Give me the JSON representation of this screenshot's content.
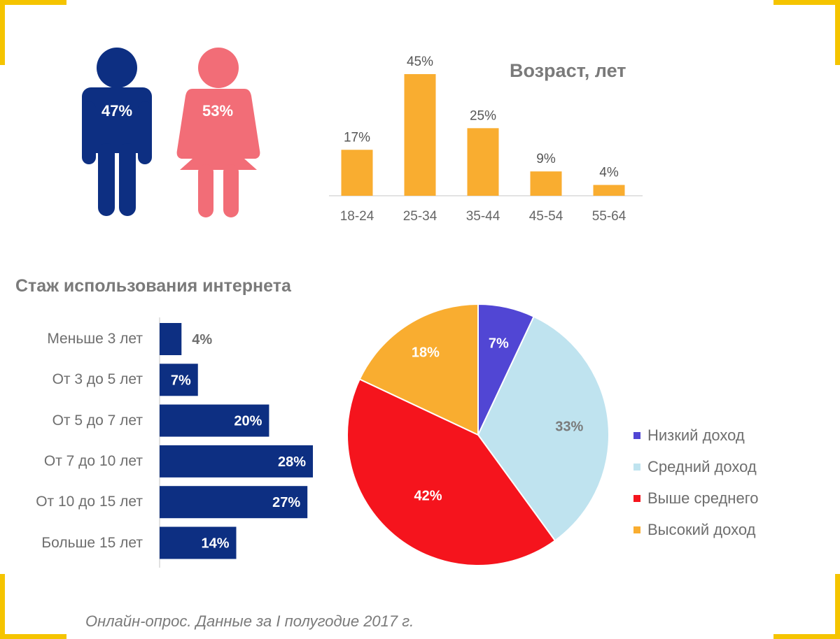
{
  "colors": {
    "corner": "#f5c400",
    "male": "#0d2f82",
    "female": "#f26d77",
    "age_bar": "#f9ad30",
    "exp_bar": "#0d2f82",
    "axis": "#d9d9d9"
  },
  "gender": {
    "male_icon": "man-icon",
    "female_icon": "woman-icon",
    "male_label": "47%",
    "female_label": "53%"
  },
  "age": {
    "title": "Возраст, лет"
  },
  "experience": {
    "title": "Стаж использования интернета"
  },
  "legend": [
    {
      "label": "Низкий доход",
      "color": "#5146d4"
    },
    {
      "label": "Средний доход",
      "color": "#bfe3ef"
    },
    {
      "label": "Выше среднего",
      "color": "#f5141d"
    },
    {
      "label": "Высокий доход",
      "color": "#f9ad30"
    }
  ],
  "footnote": "Онлайн-опрос. Данные за I полугодие 2017 г.",
  "chart_data": [
    {
      "type": "pie",
      "title": "",
      "categories": [
        "Мужчины",
        "Женщины"
      ],
      "values": [
        47,
        53
      ],
      "labels": [
        "47%",
        "53%"
      ]
    },
    {
      "type": "bar",
      "title": "Возраст, лет",
      "categories": [
        "18-24",
        "25-34",
        "35-44",
        "45-54",
        "55-64"
      ],
      "values": [
        17,
        45,
        25,
        9,
        4
      ],
      "labels": [
        "17%",
        "45%",
        "25%",
        "9%",
        "4%"
      ],
      "ylim": [
        0,
        45
      ]
    },
    {
      "type": "bar",
      "orientation": "horizontal",
      "title": "Стаж использования интернета",
      "categories": [
        "Меньше 3 лет",
        "От 3 до 5 лет",
        "От 5 до 7 лет",
        "От 7 до 10 лет",
        "От 10 до 15 лет",
        "Больше 15 лет"
      ],
      "values": [
        4,
        7,
        20,
        28,
        27,
        14
      ],
      "labels": [
        "4%",
        "7%",
        "20%",
        "28%",
        "27%",
        "14%"
      ],
      "xlim": [
        0,
        28
      ]
    },
    {
      "type": "pie",
      "title": "",
      "categories": [
        "Низкий доход",
        "Средний доход",
        "Выше среднего",
        "Высокий доход"
      ],
      "values": [
        7,
        33,
        42,
        18
      ],
      "labels": [
        "7%",
        "33%",
        "42%",
        "18%"
      ],
      "legend_position": "right"
    }
  ]
}
